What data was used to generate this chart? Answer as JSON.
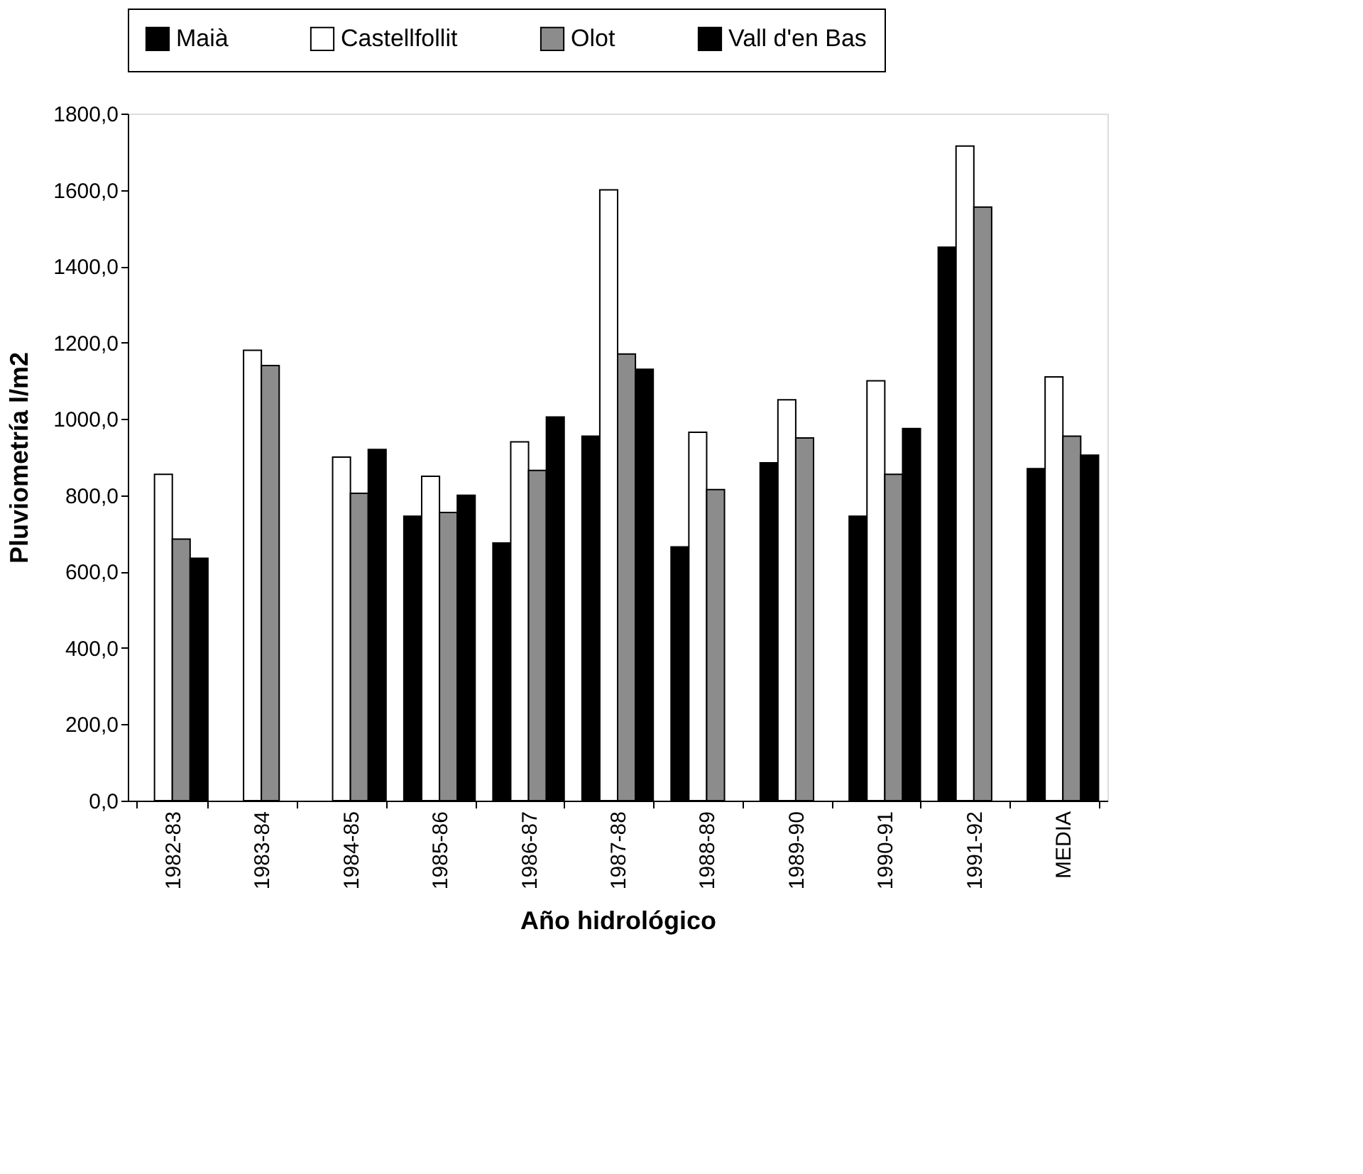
{
  "chart_data": {
    "type": "bar",
    "xlabel": "Año hidrológico",
    "ylabel": "Pluviometría l/m2",
    "categories": [
      "1982-83",
      "1983-84",
      "1984-85",
      "1985-86",
      "1986-87",
      "1987-88",
      "1988-89",
      "1989-90",
      "1990-91",
      "1991-92",
      "MEDIA"
    ],
    "series": [
      {
        "name": "Maià",
        "color": "#000000",
        "values": [
          null,
          null,
          null,
          745,
          675,
          955,
          665,
          885,
          745,
          1450,
          870
        ]
      },
      {
        "name": "Castellfollit",
        "color": "#ffffff",
        "values": [
          855,
          1180,
          900,
          850,
          940,
          1600,
          965,
          1050,
          1100,
          1715,
          1110
        ]
      },
      {
        "name": "Olot",
        "color": "#8c8c8c",
        "values": [
          685,
          1140,
          805,
          755,
          865,
          1170,
          815,
          950,
          855,
          1555,
          955
        ]
      },
      {
        "name": "Vall d'en Bas",
        "color": "#000000",
        "values": [
          635,
          null,
          920,
          800,
          1005,
          1130,
          null,
          null,
          975,
          null,
          905
        ]
      }
    ],
    "ylim": [
      0,
      1800
    ],
    "yticks": [
      {
        "value": 0,
        "label": "0,0"
      },
      {
        "value": 200,
        "label": "200,0"
      },
      {
        "value": 400,
        "label": "400,0"
      },
      {
        "value": 600,
        "label": "600,0"
      },
      {
        "value": 800,
        "label": "800,0"
      },
      {
        "value": 1000,
        "label": "1000,0"
      },
      {
        "value": 1200,
        "label": "1200,0"
      },
      {
        "value": 1400,
        "label": "1400,0"
      },
      {
        "value": 1600,
        "label": "1600,0"
      },
      {
        "value": 1800,
        "label": "1800,0"
      }
    ],
    "grid": false,
    "legend": "top"
  }
}
